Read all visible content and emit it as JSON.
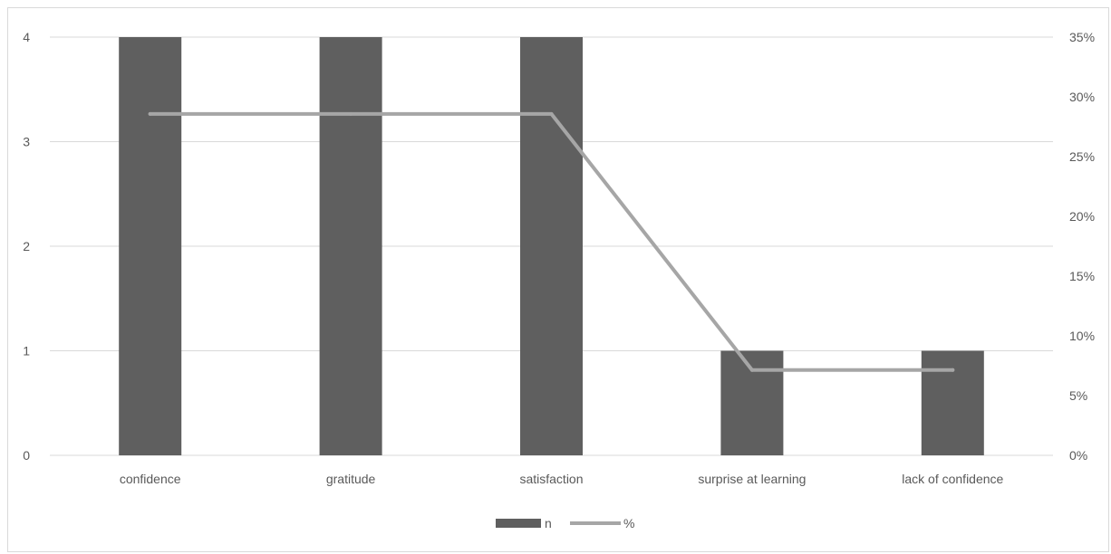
{
  "chart_data": {
    "type": "bar",
    "categories": [
      "confidence",
      "gratitude",
      "satisfaction",
      "surprise at learning",
      "lack of confidence"
    ],
    "series": [
      {
        "name": "n",
        "type": "bar",
        "axis": "left",
        "values": [
          4,
          4,
          4,
          1,
          1
        ],
        "color": "#5f5f5f"
      },
      {
        "name": "%",
        "type": "line",
        "axis": "right",
        "values": [
          28.57,
          28.57,
          28.57,
          7.14,
          7.14
        ],
        "color": "#a6a6a6"
      }
    ],
    "y_left": {
      "ylim": [
        0,
        4
      ],
      "ticks": [
        "0",
        "1",
        "2",
        "3",
        "4"
      ]
    },
    "y_right": {
      "ylim": [
        0,
        35
      ],
      "ticks": [
        "0%",
        "5%",
        "10%",
        "15%",
        "20%",
        "25%",
        "30%",
        "35%"
      ]
    },
    "grid": true,
    "legend": "bottom-center",
    "colors": {
      "gridline": "#d9d9d9",
      "text": "#595959",
      "border": "#d9d9d9"
    }
  }
}
